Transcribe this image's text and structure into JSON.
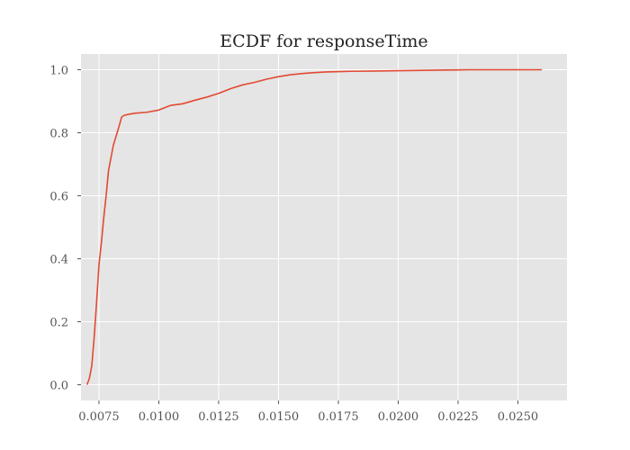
{
  "chart_data": {
    "type": "line",
    "title": "ECDF for responseTime",
    "xlabel": "",
    "ylabel": "",
    "xlim": [
      0.00675,
      0.02705
    ],
    "ylim": [
      -0.05,
      1.05
    ],
    "grid": true,
    "x_ticks": [
      0.0075,
      0.01,
      0.0125,
      0.015,
      0.0175,
      0.02,
      0.0225,
      0.025
    ],
    "x_tick_labels": [
      "0.0075",
      "0.0100",
      "0.0125",
      "0.0150",
      "0.0175",
      "0.0200",
      "0.0225",
      "0.0250"
    ],
    "y_ticks": [
      0.0,
      0.2,
      0.4,
      0.6,
      0.8,
      1.0
    ],
    "y_tick_labels": [
      "0.0",
      "0.2",
      "0.4",
      "0.6",
      "0.8",
      "1.0"
    ],
    "colors": {
      "line": "#e24a33",
      "plot_bg": "#e5e5e5",
      "grid": "#ffffff",
      "text": "#555555"
    },
    "series": [
      {
        "x": [
          0.007,
          0.0071,
          0.0072,
          0.0073,
          0.0074,
          0.0075,
          0.0076,
          0.0077,
          0.0078,
          0.0079,
          0.008,
          0.0081,
          0.0083,
          0.00845,
          0.00855,
          0.0087,
          0.009,
          0.0095,
          0.01,
          0.0105,
          0.011,
          0.0115,
          0.012,
          0.0125,
          0.013,
          0.0135,
          0.014,
          0.0145,
          0.015,
          0.0155,
          0.016,
          0.0165,
          0.017,
          0.018,
          0.019,
          0.02,
          0.021,
          0.022,
          0.023,
          0.024,
          0.026
        ],
        "y": [
          0.0,
          0.02,
          0.06,
          0.15,
          0.26,
          0.38,
          0.45,
          0.53,
          0.6,
          0.68,
          0.72,
          0.76,
          0.81,
          0.85,
          0.855,
          0.858,
          0.862,
          0.865,
          0.872,
          0.887,
          0.892,
          0.903,
          0.913,
          0.925,
          0.94,
          0.952,
          0.96,
          0.97,
          0.978,
          0.984,
          0.988,
          0.991,
          0.993,
          0.995,
          0.996,
          0.997,
          0.998,
          0.999,
          1.0,
          1.0,
          1.0
        ]
      }
    ]
  }
}
